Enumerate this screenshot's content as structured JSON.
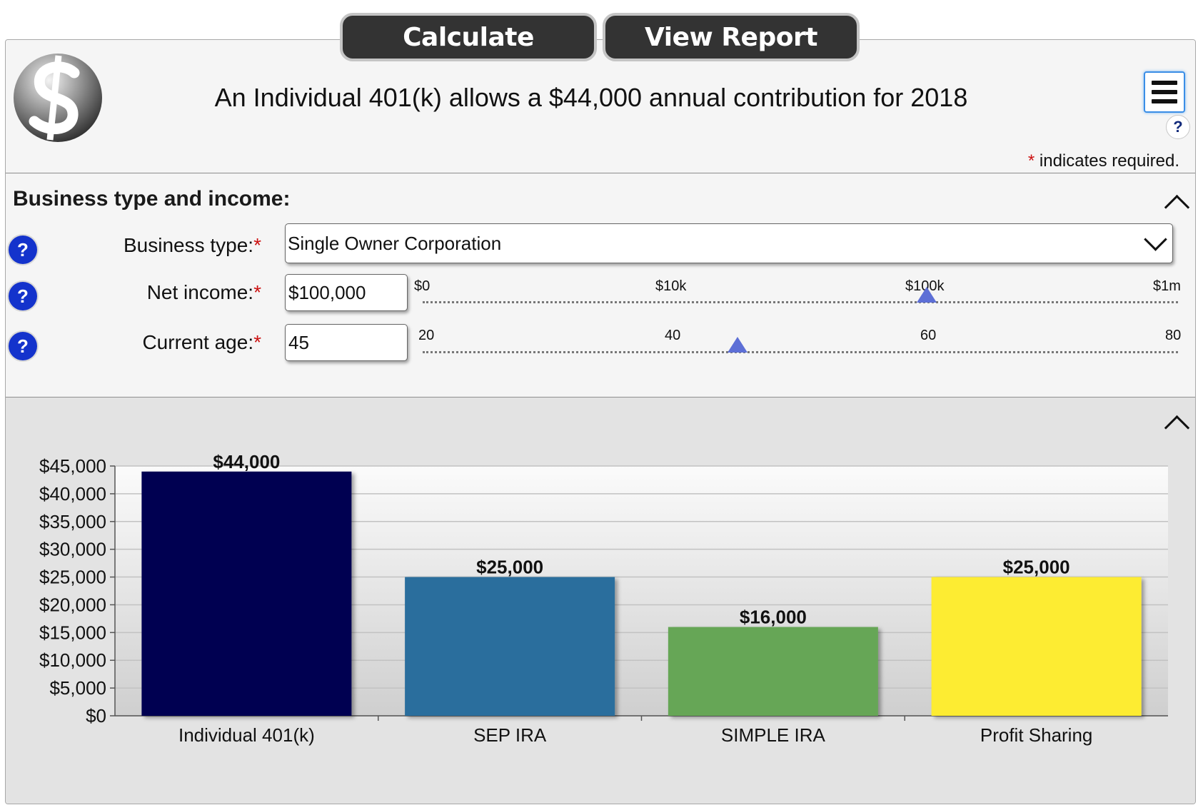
{
  "toolbar": {
    "calculate_label": "Calculate",
    "report_label": "View Report"
  },
  "header": {
    "headline": "An Individual 401(k) allows a $44,000 annual contribution for 2018",
    "help_symbol": "?",
    "required_star": "*",
    "required_note": " indicates required."
  },
  "section": {
    "title": "Business type and income:",
    "business_type": {
      "label": "Business type:",
      "star": "*",
      "value": "Single Owner Corporation"
    },
    "net_income": {
      "label": "Net income:",
      "star": "*",
      "value": "$100,000",
      "ticks": [
        "$0",
        "$10k",
        "$100k",
        "$1m"
      ],
      "slider_position": 0.667
    },
    "current_age": {
      "label": "Current age:",
      "star": "*",
      "value": "45",
      "ticks": [
        "20",
        "40",
        "60",
        "80"
      ],
      "slider_range": [
        20,
        80
      ],
      "slider_value": 45
    }
  },
  "help_button_symbol": "?",
  "chart_data": {
    "type": "bar",
    "categories": [
      "Individual 401(k)",
      "SEP IRA",
      "SIMPLE IRA",
      "Profit Sharing"
    ],
    "values": [
      44000,
      25000,
      16000,
      25000
    ],
    "data_labels": [
      "$44,000",
      "$25,000",
      "$16,000",
      "$25,000"
    ],
    "colors": [
      "#030551",
      "#2a6e9d",
      "#66a656",
      "#fdec32"
    ],
    "yticks": [
      "$0",
      "$5,000",
      "$10,000",
      "$15,000",
      "$20,000",
      "$25,000",
      "$30,000",
      "$35,000",
      "$40,000",
      "$45,000"
    ],
    "ylim": [
      0,
      45000
    ],
    "title": "",
    "xlabel": "",
    "ylabel": "",
    "grid": true
  }
}
